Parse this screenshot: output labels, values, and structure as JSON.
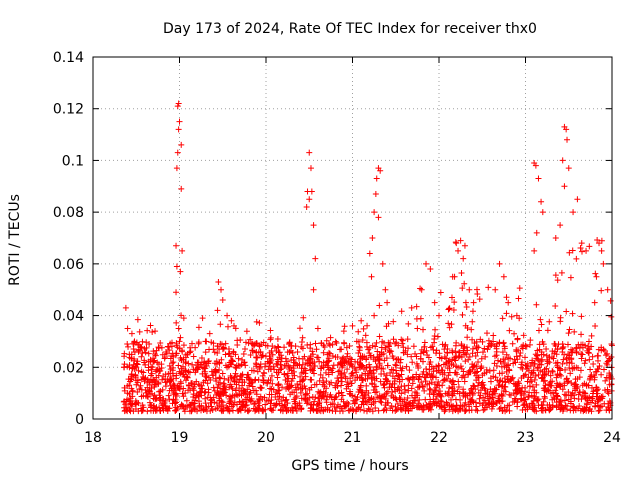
{
  "chart_data": {
    "type": "scatter",
    "title": "Day 173 of 2024, Rate Of TEC Index for receiver thx0",
    "xlabel": "GPS time / hours",
    "ylabel": "ROTI / TECUs",
    "xlim": [
      18,
      24
    ],
    "ylim": [
      0,
      0.14
    ],
    "x_ticks": [
      18,
      19,
      20,
      21,
      22,
      23,
      24
    ],
    "x_tick_labels": [
      "18",
      "19",
      "20",
      "21",
      "22",
      "23",
      "24"
    ],
    "y_ticks": [
      0,
      0.02,
      0.04,
      0.06,
      0.08,
      0.1,
      0.12,
      0.14
    ],
    "y_tick_labels": [
      "0",
      "0.02",
      "0.04",
      "0.06",
      "0.08",
      "0.1",
      "0.12",
      "0.14"
    ],
    "grid": true,
    "marker": "+",
    "marker_color": "#ff0000",
    "series": [
      {
        "name": "ROTI",
        "points": [
          [
            18.38,
            0.043
          ],
          [
            18.4,
            0.035
          ],
          [
            18.45,
            0.033
          ],
          [
            18.48,
            0.03
          ],
          [
            18.42,
            0.025
          ],
          [
            18.5,
            0.02
          ],
          [
            18.4,
            0.01
          ],
          [
            18.45,
            0.005
          ],
          [
            18.98,
            0.121
          ],
          [
            18.99,
            0.122
          ],
          [
            19.0,
            0.115
          ],
          [
            18.99,
            0.112
          ],
          [
            19.02,
            0.106
          ],
          [
            18.98,
            0.103
          ],
          [
            18.97,
            0.097
          ],
          [
            19.02,
            0.089
          ],
          [
            18.96,
            0.067
          ],
          [
            19.03,
            0.065
          ],
          [
            18.97,
            0.059
          ],
          [
            19.01,
            0.057
          ],
          [
            18.96,
            0.049
          ],
          [
            19.05,
            0.039
          ],
          [
            18.99,
            0.035
          ],
          [
            19.0,
            0.03
          ],
          [
            19.45,
            0.053
          ],
          [
            19.48,
            0.05
          ],
          [
            19.5,
            0.046
          ],
          [
            19.44,
            0.042
          ],
          [
            19.55,
            0.04
          ],
          [
            19.6,
            0.038
          ],
          [
            19.63,
            0.036
          ],
          [
            19.35,
            0.033
          ],
          [
            19.3,
            0.03
          ],
          [
            20.5,
            0.103
          ],
          [
            20.52,
            0.097
          ],
          [
            20.48,
            0.088
          ],
          [
            20.53,
            0.088
          ],
          [
            20.5,
            0.085
          ],
          [
            20.47,
            0.082
          ],
          [
            20.55,
            0.075
          ],
          [
            20.57,
            0.062
          ],
          [
            20.55,
            0.05
          ],
          [
            20.6,
            0.035
          ],
          [
            20.9,
            0.034
          ],
          [
            21.0,
            0.036
          ],
          [
            21.1,
            0.038
          ],
          [
            21.05,
            0.03
          ],
          [
            21.3,
            0.097
          ],
          [
            21.32,
            0.096
          ],
          [
            21.28,
            0.093
          ],
          [
            21.27,
            0.087
          ],
          [
            21.25,
            0.08
          ],
          [
            21.3,
            0.078
          ],
          [
            21.23,
            0.07
          ],
          [
            21.2,
            0.064
          ],
          [
            21.35,
            0.06
          ],
          [
            21.22,
            0.055
          ],
          [
            21.38,
            0.05
          ],
          [
            21.4,
            0.045
          ],
          [
            21.25,
            0.04
          ],
          [
            21.85,
            0.06
          ],
          [
            21.9,
            0.058
          ],
          [
            21.8,
            0.05
          ],
          [
            21.95,
            0.045
          ],
          [
            22.0,
            0.04
          ],
          [
            21.75,
            0.035
          ],
          [
            22.2,
            0.068
          ],
          [
            22.25,
            0.069
          ],
          [
            22.3,
            0.067
          ],
          [
            22.22,
            0.065
          ],
          [
            22.28,
            0.062
          ],
          [
            22.18,
            0.055
          ],
          [
            22.35,
            0.05
          ],
          [
            22.15,
            0.047
          ],
          [
            22.4,
            0.045
          ],
          [
            22.7,
            0.06
          ],
          [
            22.75,
            0.055
          ],
          [
            22.65,
            0.05
          ],
          [
            22.8,
            0.045
          ],
          [
            22.9,
            0.04
          ],
          [
            23.1,
            0.099
          ],
          [
            23.12,
            0.098
          ],
          [
            23.15,
            0.093
          ],
          [
            23.18,
            0.084
          ],
          [
            23.2,
            0.08
          ],
          [
            23.13,
            0.072
          ],
          [
            23.1,
            0.065
          ],
          [
            23.45,
            0.113
          ],
          [
            23.47,
            0.112
          ],
          [
            23.48,
            0.108
          ],
          [
            23.43,
            0.1
          ],
          [
            23.5,
            0.097
          ],
          [
            23.45,
            0.09
          ],
          [
            23.6,
            0.085
          ],
          [
            23.55,
            0.08
          ],
          [
            23.4,
            0.075
          ],
          [
            23.35,
            0.07
          ],
          [
            23.65,
            0.068
          ],
          [
            23.7,
            0.065
          ],
          [
            23.85,
            0.068
          ],
          [
            23.88,
            0.065
          ],
          [
            23.9,
            0.06
          ],
          [
            23.82,
            0.055
          ],
          [
            23.95,
            0.05
          ],
          [
            23.8,
            0.045
          ]
        ]
      }
    ]
  }
}
